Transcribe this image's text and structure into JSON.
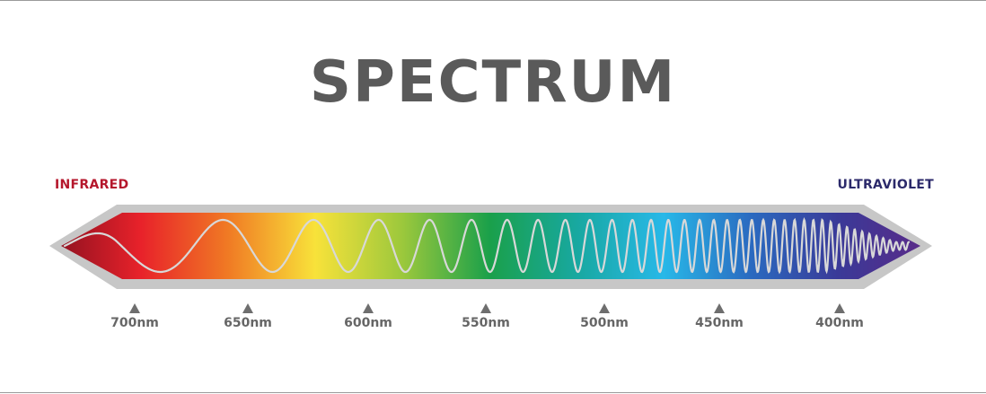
{
  "title": "SPECTRUM",
  "labels": {
    "left": "INFRARED",
    "right": "ULTRAVIOLET"
  },
  "colors": {
    "title": "#5a5a5a",
    "infrared_label": "#b5172c",
    "ultraviolet_label": "#2c2a6b",
    "frame": "#c7c7c7",
    "wave": "#d8d8d8",
    "tick_marker": "#6e6e6e",
    "tick_text": "#666666"
  },
  "gradient": [
    "#8c1020",
    "#e8222a",
    "#f07a24",
    "#f8e23a",
    "#9cc83c",
    "#1aa04a",
    "#18a8a0",
    "#28b8e8",
    "#2a6ac0",
    "#3a3a98",
    "#5a2a88"
  ],
  "wavelength_ticks": [
    "700nm",
    "650nm",
    "600nm",
    "550nm",
    "500nm",
    "450nm",
    "400nm"
  ]
}
